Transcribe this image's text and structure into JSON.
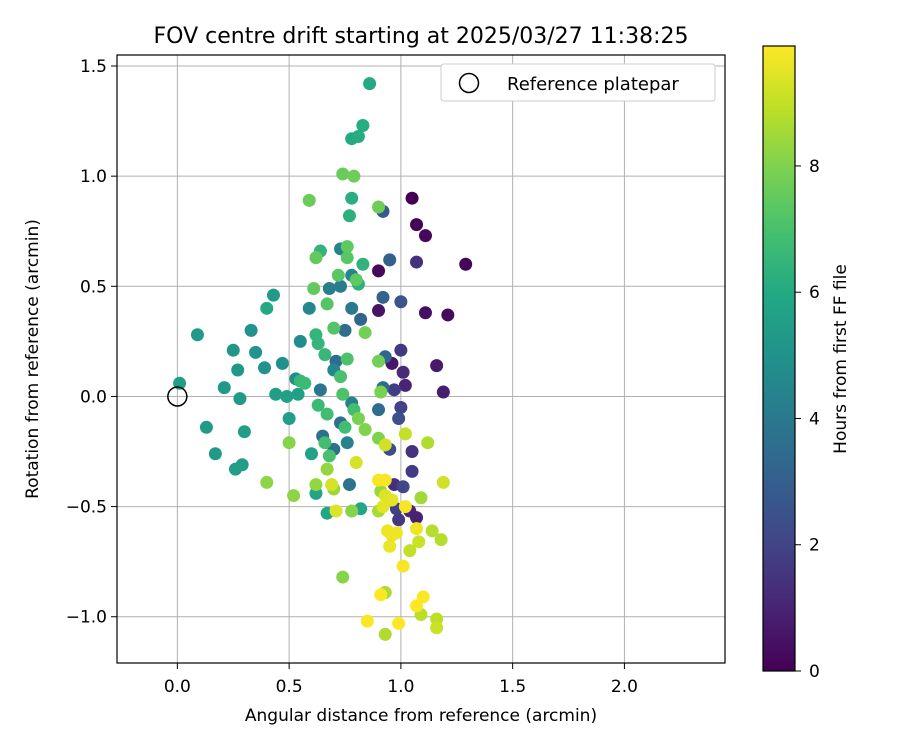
{
  "chart_data": {
    "type": "scatter",
    "title": "FOV centre drift starting at 2025/03/27 11:38:25",
    "xlabel": "Angular distance from reference (arcmin)",
    "ylabel": "Rotation from reference (arcmin)",
    "xlim": [
      -0.27,
      2.45
    ],
    "ylim": [
      -1.21,
      1.55
    ],
    "xticks": [
      0.0,
      0.5,
      1.0,
      1.5,
      2.0
    ],
    "xtick_labels": [
      "0.0",
      "0.5",
      "1.0",
      "1.5",
      "2.0"
    ],
    "yticks": [
      -1.0,
      -0.5,
      0.0,
      0.5,
      1.0,
      1.5
    ],
    "ytick_labels": [
      "−1.0",
      "−0.5",
      "0.0",
      "0.5",
      "1.0",
      "1.5"
    ],
    "grid": true,
    "legend": {
      "position": "top-right",
      "entries": [
        "Reference platepar"
      ]
    },
    "reference_point": {
      "x": 0.0,
      "y": 0.0,
      "label": "Reference platepar"
    },
    "colorbar": {
      "label": "Hours from first FF file",
      "colormap": "viridis",
      "range": [
        0,
        9.9
      ],
      "ticks": [
        0,
        2,
        4,
        6,
        8
      ],
      "tick_labels": [
        "0",
        "2",
        "4",
        "6",
        "8"
      ]
    },
    "points": [
      {
        "x": 1.05,
        "y": 0.9,
        "c": 0.0
      },
      {
        "x": 1.07,
        "y": 0.78,
        "c": 0.1
      },
      {
        "x": 1.11,
        "y": 0.73,
        "c": 0.2
      },
      {
        "x": 1.29,
        "y": 0.6,
        "c": 0.1
      },
      {
        "x": 0.9,
        "y": 0.57,
        "c": 0.2
      },
      {
        "x": 1.21,
        "y": 0.37,
        "c": 0.3
      },
      {
        "x": 1.11,
        "y": 0.38,
        "c": 0.4
      },
      {
        "x": 0.9,
        "y": 0.39,
        "c": 0.5
      },
      {
        "x": 0.96,
        "y": 0.15,
        "c": 0.6
      },
      {
        "x": 1.16,
        "y": 0.14,
        "c": 0.7
      },
      {
        "x": 1.19,
        "y": 0.02,
        "c": 0.8
      },
      {
        "x": 1.02,
        "y": 0.05,
        "c": 1.0
      },
      {
        "x": 1.07,
        "y": 0.61,
        "c": 1.4
      },
      {
        "x": 1.0,
        "y": 0.21,
        "c": 1.6
      },
      {
        "x": 1.01,
        "y": 0.11,
        "c": 1.2
      },
      {
        "x": 0.97,
        "y": 0.03,
        "c": 1.8
      },
      {
        "x": 1.0,
        "y": -0.05,
        "c": 2.0
      },
      {
        "x": 1.05,
        "y": -0.25,
        "c": 1.5
      },
      {
        "x": 1.05,
        "y": -0.34,
        "c": 1.7
      },
      {
        "x": 0.97,
        "y": -0.4,
        "c": 1.3
      },
      {
        "x": 1.01,
        "y": -0.41,
        "c": 2.1
      },
      {
        "x": 0.98,
        "y": -0.51,
        "c": 1.9
      },
      {
        "x": 0.99,
        "y": -0.56,
        "c": 1.6
      },
      {
        "x": 1.04,
        "y": -0.52,
        "c": 1.1
      },
      {
        "x": 1.07,
        "y": -0.55,
        "c": 0.9
      },
      {
        "x": 0.95,
        "y": -0.24,
        "c": 2.3
      },
      {
        "x": 0.99,
        "y": -0.1,
        "c": 2.4
      },
      {
        "x": 1.0,
        "y": 0.43,
        "c": 2.6
      },
      {
        "x": 0.92,
        "y": 0.84,
        "c": 2.8
      },
      {
        "x": 0.95,
        "y": 0.62,
        "c": 3.0
      },
      {
        "x": 0.92,
        "y": 0.45,
        "c": 3.1
      },
      {
        "x": 0.82,
        "y": 0.35,
        "c": 3.2
      },
      {
        "x": 0.93,
        "y": 0.18,
        "c": 3.3
      },
      {
        "x": 0.92,
        "y": 0.04,
        "c": 3.4
      },
      {
        "x": 0.9,
        "y": -0.06,
        "c": 3.5
      },
      {
        "x": 0.71,
        "y": 0.16,
        "c": 3.5
      },
      {
        "x": 0.73,
        "y": -0.12,
        "c": 3.6
      },
      {
        "x": 0.75,
        "y": 0.3,
        "c": 3.6
      },
      {
        "x": 0.7,
        "y": -0.24,
        "c": 3.7
      },
      {
        "x": 0.65,
        "y": -0.18,
        "c": 3.7
      },
      {
        "x": 0.77,
        "y": -0.4,
        "c": 3.8
      },
      {
        "x": 0.64,
        "y": 0.03,
        "c": 3.9
      },
      {
        "x": 0.78,
        "y": 0.4,
        "c": 4.0
      },
      {
        "x": 0.73,
        "y": 0.5,
        "c": 4.1
      },
      {
        "x": 0.68,
        "y": 0.49,
        "c": 4.2
      },
      {
        "x": 0.78,
        "y": -0.03,
        "c": 4.3
      },
      {
        "x": 0.76,
        "y": -0.21,
        "c": 4.4
      },
      {
        "x": 0.73,
        "y": 0.67,
        "c": 4.4
      },
      {
        "x": 0.78,
        "y": 0.55,
        "c": 4.5
      },
      {
        "x": 0.7,
        "y": 0.12,
        "c": 4.5
      },
      {
        "x": 0.59,
        "y": 0.4,
        "c": 4.6
      },
      {
        "x": 0.55,
        "y": 0.25,
        "c": 4.7
      },
      {
        "x": 0.53,
        "y": 0.08,
        "c": 4.8
      },
      {
        "x": 0.47,
        "y": 0.15,
        "c": 4.9
      },
      {
        "x": 0.39,
        "y": 0.13,
        "c": 5.0
      },
      {
        "x": 0.33,
        "y": 0.3,
        "c": 5.0
      },
      {
        "x": 0.35,
        "y": 0.2,
        "c": 5.1
      },
      {
        "x": 0.27,
        "y": 0.12,
        "c": 5.2
      },
      {
        "x": 0.25,
        "y": 0.21,
        "c": 5.2
      },
      {
        "x": 0.21,
        "y": 0.04,
        "c": 5.3
      },
      {
        "x": 0.28,
        "y": -0.01,
        "c": 5.4
      },
      {
        "x": 0.43,
        "y": 0.46,
        "c": 5.4
      },
      {
        "x": 0.44,
        "y": 0.01,
        "c": 5.5
      },
      {
        "x": 0.5,
        "y": -0.1,
        "c": 5.5
      },
      {
        "x": 0.49,
        "y": 0.0,
        "c": 5.6
      },
      {
        "x": 0.54,
        "y": 0.01,
        "c": 5.6
      },
      {
        "x": 0.6,
        "y": -0.26,
        "c": 5.7
      },
      {
        "x": 0.62,
        "y": -0.44,
        "c": 5.8
      },
      {
        "x": 0.67,
        "y": -0.53,
        "c": 5.8
      },
      {
        "x": 0.82,
        "y": -0.51,
        "c": 5.9
      },
      {
        "x": 0.29,
        "y": -0.31,
        "c": 5.5
      },
      {
        "x": 0.26,
        "y": -0.33,
        "c": 5.5
      },
      {
        "x": 0.3,
        "y": -0.16,
        "c": 5.5
      },
      {
        "x": 0.17,
        "y": -0.26,
        "c": 5.4
      },
      {
        "x": 0.13,
        "y": -0.14,
        "c": 5.4
      },
      {
        "x": 0.09,
        "y": 0.28,
        "c": 5.4
      },
      {
        "x": 0.01,
        "y": 0.06,
        "c": 5.5
      },
      {
        "x": 0.4,
        "y": 0.4,
        "c": 6.0
      },
      {
        "x": 0.78,
        "y": 1.17,
        "c": 6.0
      },
      {
        "x": 0.81,
        "y": 1.18,
        "c": 6.1
      },
      {
        "x": 0.83,
        "y": 1.23,
        "c": 6.1
      },
      {
        "x": 0.86,
        "y": 1.42,
        "c": 6.0
      },
      {
        "x": 0.78,
        "y": 0.9,
        "c": 6.2
      },
      {
        "x": 0.77,
        "y": 0.82,
        "c": 6.3
      },
      {
        "x": 0.81,
        "y": 0.51,
        "c": 6.3
      },
      {
        "x": 0.83,
        "y": 0.6,
        "c": 6.4
      },
      {
        "x": 0.64,
        "y": 0.66,
        "c": 6.4
      },
      {
        "x": 0.62,
        "y": 0.28,
        "c": 6.5
      },
      {
        "x": 0.63,
        "y": 0.24,
        "c": 6.5
      },
      {
        "x": 0.66,
        "y": 0.19,
        "c": 6.6
      },
      {
        "x": 0.55,
        "y": 0.07,
        "c": 6.6
      },
      {
        "x": 0.57,
        "y": 0.06,
        "c": 6.7
      },
      {
        "x": 0.63,
        "y": -0.04,
        "c": 6.7
      },
      {
        "x": 0.67,
        "y": -0.08,
        "c": 6.8
      },
      {
        "x": 0.75,
        "y": -0.14,
        "c": 6.8
      },
      {
        "x": 0.79,
        "y": -0.06,
        "c": 6.9
      },
      {
        "x": 0.66,
        "y": -0.21,
        "c": 6.9
      },
      {
        "x": 0.68,
        "y": -0.27,
        "c": 7.0
      },
      {
        "x": 0.73,
        "y": 0.09,
        "c": 7.0
      },
      {
        "x": 0.74,
        "y": 0.01,
        "c": 7.1
      },
      {
        "x": 0.76,
        "y": 0.17,
        "c": 7.1
      },
      {
        "x": 0.7,
        "y": 0.31,
        "c": 7.2
      },
      {
        "x": 0.67,
        "y": 0.42,
        "c": 7.2
      },
      {
        "x": 0.72,
        "y": 0.55,
        "c": 7.3
      },
      {
        "x": 0.76,
        "y": 0.63,
        "c": 7.3
      },
      {
        "x": 0.76,
        "y": 0.68,
        "c": 7.4
      },
      {
        "x": 0.8,
        "y": 0.53,
        "c": 7.4
      },
      {
        "x": 0.61,
        "y": 0.49,
        "c": 7.5
      },
      {
        "x": 0.62,
        "y": 0.63,
        "c": 7.5
      },
      {
        "x": 0.59,
        "y": 0.89,
        "c": 7.6
      },
      {
        "x": 0.74,
        "y": 1.01,
        "c": 7.6
      },
      {
        "x": 0.79,
        "y": 1.0,
        "c": 7.7
      },
      {
        "x": 0.9,
        "y": 0.86,
        "c": 7.7
      },
      {
        "x": 0.84,
        "y": 0.29,
        "c": 7.8
      },
      {
        "x": 0.9,
        "y": 0.16,
        "c": 7.8
      },
      {
        "x": 0.91,
        "y": 0.02,
        "c": 7.9
      },
      {
        "x": 0.81,
        "y": -0.1,
        "c": 7.9
      },
      {
        "x": 0.84,
        "y": -0.15,
        "c": 8.0
      },
      {
        "x": 0.9,
        "y": -0.19,
        "c": 8.0
      },
      {
        "x": 0.78,
        "y": -0.52,
        "c": 8.1
      },
      {
        "x": 0.74,
        "y": -0.82,
        "c": 8.1
      },
      {
        "x": 0.5,
        "y": -0.21,
        "c": 8.1
      },
      {
        "x": 0.52,
        "y": -0.45,
        "c": 8.2
      },
      {
        "x": 0.4,
        "y": -0.39,
        "c": 8.2
      },
      {
        "x": 0.62,
        "y": -0.4,
        "c": 8.3
      },
      {
        "x": 0.67,
        "y": -0.33,
        "c": 8.3
      },
      {
        "x": 0.7,
        "y": -0.42,
        "c": 8.4
      },
      {
        "x": 0.91,
        "y": -0.43,
        "c": 8.4
      },
      {
        "x": 1.09,
        "y": -0.46,
        "c": 8.5
      },
      {
        "x": 0.9,
        "y": -0.52,
        "c": 8.6
      },
      {
        "x": 0.93,
        "y": -0.89,
        "c": 8.6
      },
      {
        "x": 0.93,
        "y": -1.08,
        "c": 8.7
      },
      {
        "x": 1.12,
        "y": -0.21,
        "c": 8.7
      },
      {
        "x": 1.14,
        "y": -0.61,
        "c": 8.8
      },
      {
        "x": 1.18,
        "y": -0.65,
        "c": 8.8
      },
      {
        "x": 1.09,
        "y": -0.99,
        "c": 8.9
      },
      {
        "x": 1.16,
        "y": -1.01,
        "c": 8.9
      },
      {
        "x": 1.02,
        "y": -0.17,
        "c": 9.0
      },
      {
        "x": 1.04,
        "y": -0.7,
        "c": 9.0
      },
      {
        "x": 1.08,
        "y": -0.66,
        "c": 9.1
      },
      {
        "x": 1.16,
        "y": -1.05,
        "c": 9.1
      },
      {
        "x": 0.93,
        "y": -0.22,
        "c": 9.2
      },
      {
        "x": 1.19,
        "y": -0.39,
        "c": 9.2
      },
      {
        "x": 0.8,
        "y": -0.3,
        "c": 9.3
      },
      {
        "x": 0.69,
        "y": -0.4,
        "c": 9.3
      },
      {
        "x": 0.71,
        "y": -0.52,
        "c": 9.4
      },
      {
        "x": 0.93,
        "y": -0.45,
        "c": 9.4
      },
      {
        "x": 0.96,
        "y": -0.47,
        "c": 9.5
      },
      {
        "x": 0.92,
        "y": -0.5,
        "c": 9.5
      },
      {
        "x": 0.96,
        "y": -0.63,
        "c": 9.6
      },
      {
        "x": 0.95,
        "y": -0.68,
        "c": 9.6
      },
      {
        "x": 0.98,
        "y": -0.62,
        "c": 9.7
      },
      {
        "x": 1.07,
        "y": -0.6,
        "c": 9.7
      },
      {
        "x": 1.02,
        "y": -0.5,
        "c": 9.8
      },
      {
        "x": 1.01,
        "y": -0.77,
        "c": 9.8
      },
      {
        "x": 0.91,
        "y": -0.9,
        "c": 9.9
      },
      {
        "x": 1.1,
        "y": -0.91,
        "c": 9.9
      },
      {
        "x": 1.07,
        "y": -0.95,
        "c": 9.9
      },
      {
        "x": 0.85,
        "y": -1.02,
        "c": 9.9
      },
      {
        "x": 0.99,
        "y": -1.03,
        "c": 9.9
      },
      {
        "x": 0.9,
        "y": -0.38,
        "c": 9.8
      },
      {
        "x": 0.93,
        "y": -0.38,
        "c": 9.8
      },
      {
        "x": 0.94,
        "y": -0.61,
        "c": 9.7
      }
    ]
  }
}
